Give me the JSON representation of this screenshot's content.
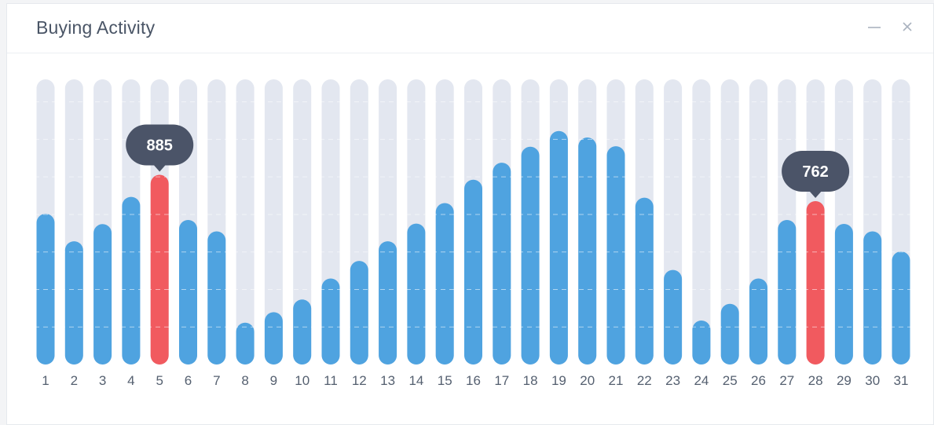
{
  "panel": {
    "title": "Buying Activity",
    "minimize_icon": "minimize-icon",
    "close_icon": "close-icon"
  },
  "colors": {
    "track": "#e3e7f0",
    "bar": "#4fa3e0",
    "highlight": "#f15a5f",
    "tooltip": "#4b5468",
    "tooltip_text": "#ffffff",
    "gridline": "#ffffff",
    "tick_text": "#556070"
  },
  "chart_data": {
    "type": "bar",
    "categories": [
      "1",
      "2",
      "3",
      "4",
      "5",
      "6",
      "7",
      "8",
      "9",
      "10",
      "11",
      "12",
      "13",
      "14",
      "15",
      "16",
      "17",
      "18",
      "19",
      "20",
      "21",
      "22",
      "23",
      "24",
      "25",
      "26",
      "27",
      "28",
      "29",
      "30",
      "31"
    ],
    "values": [
      703,
      575,
      655,
      782,
      885,
      674,
      621,
      195,
      244,
      303,
      401,
      483,
      575,
      657,
      753,
      862,
      941,
      1016,
      1089,
      1059,
      1018,
      778,
      441,
      205,
      283,
      401,
      674,
      762,
      656,
      621,
      527
    ],
    "highlights": [
      {
        "category": "5",
        "label": "885"
      },
      {
        "category": "28",
        "label": "762"
      }
    ],
    "ylim": [
      0,
      1330
    ],
    "title": "Buying Activity",
    "xlabel": "",
    "ylabel": "",
    "grid": true
  }
}
